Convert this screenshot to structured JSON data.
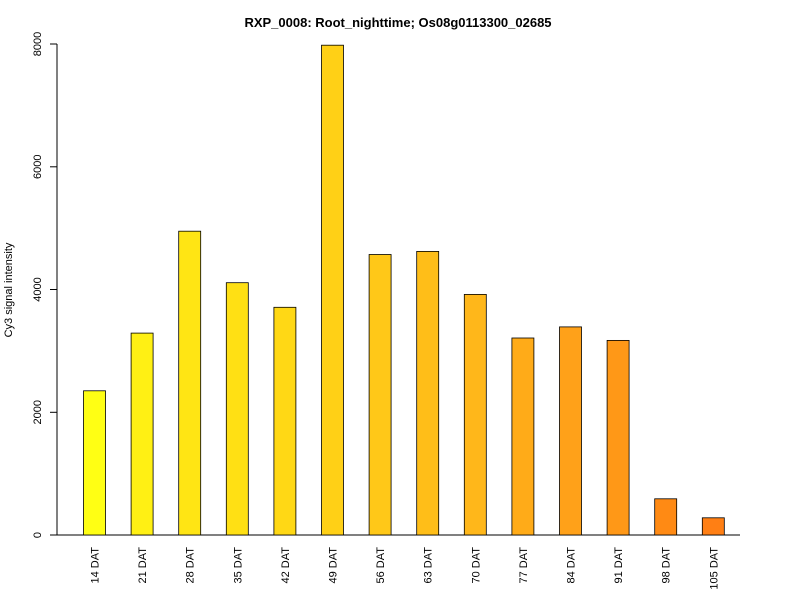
{
  "chart_data": {
    "type": "bar",
    "title": "RXP_0008: Root_nighttime; Os08g0113300_02685",
    "xlabel": "",
    "ylabel": "Cy3 signal intensity",
    "ylim": [
      0,
      8000
    ],
    "yticks": [
      0,
      2000,
      4000,
      6000,
      8000
    ],
    "grid": false,
    "categories": [
      "14 DAT",
      "21 DAT",
      "28 DAT",
      "35 DAT",
      "42 DAT",
      "49 DAT",
      "56 DAT",
      "63 DAT",
      "70 DAT",
      "77 DAT",
      "84 DAT",
      "91 DAT",
      "98 DAT",
      "105 DAT"
    ],
    "values": [
      2350,
      3290,
      4950,
      4110,
      3710,
      7980,
      4570,
      4620,
      3920,
      3210,
      3390,
      3170,
      590,
      280
    ],
    "colors": [
      "#ffff14",
      "#fff014",
      "#ffe514",
      "#ffe014",
      "#ffd815",
      "#ffd016",
      "#ffc818",
      "#ffbe18",
      "#ffb71a",
      "#ffab18",
      "#ffa119",
      "#ff9817",
      "#ff8a14",
      "#ff7f14"
    ]
  }
}
